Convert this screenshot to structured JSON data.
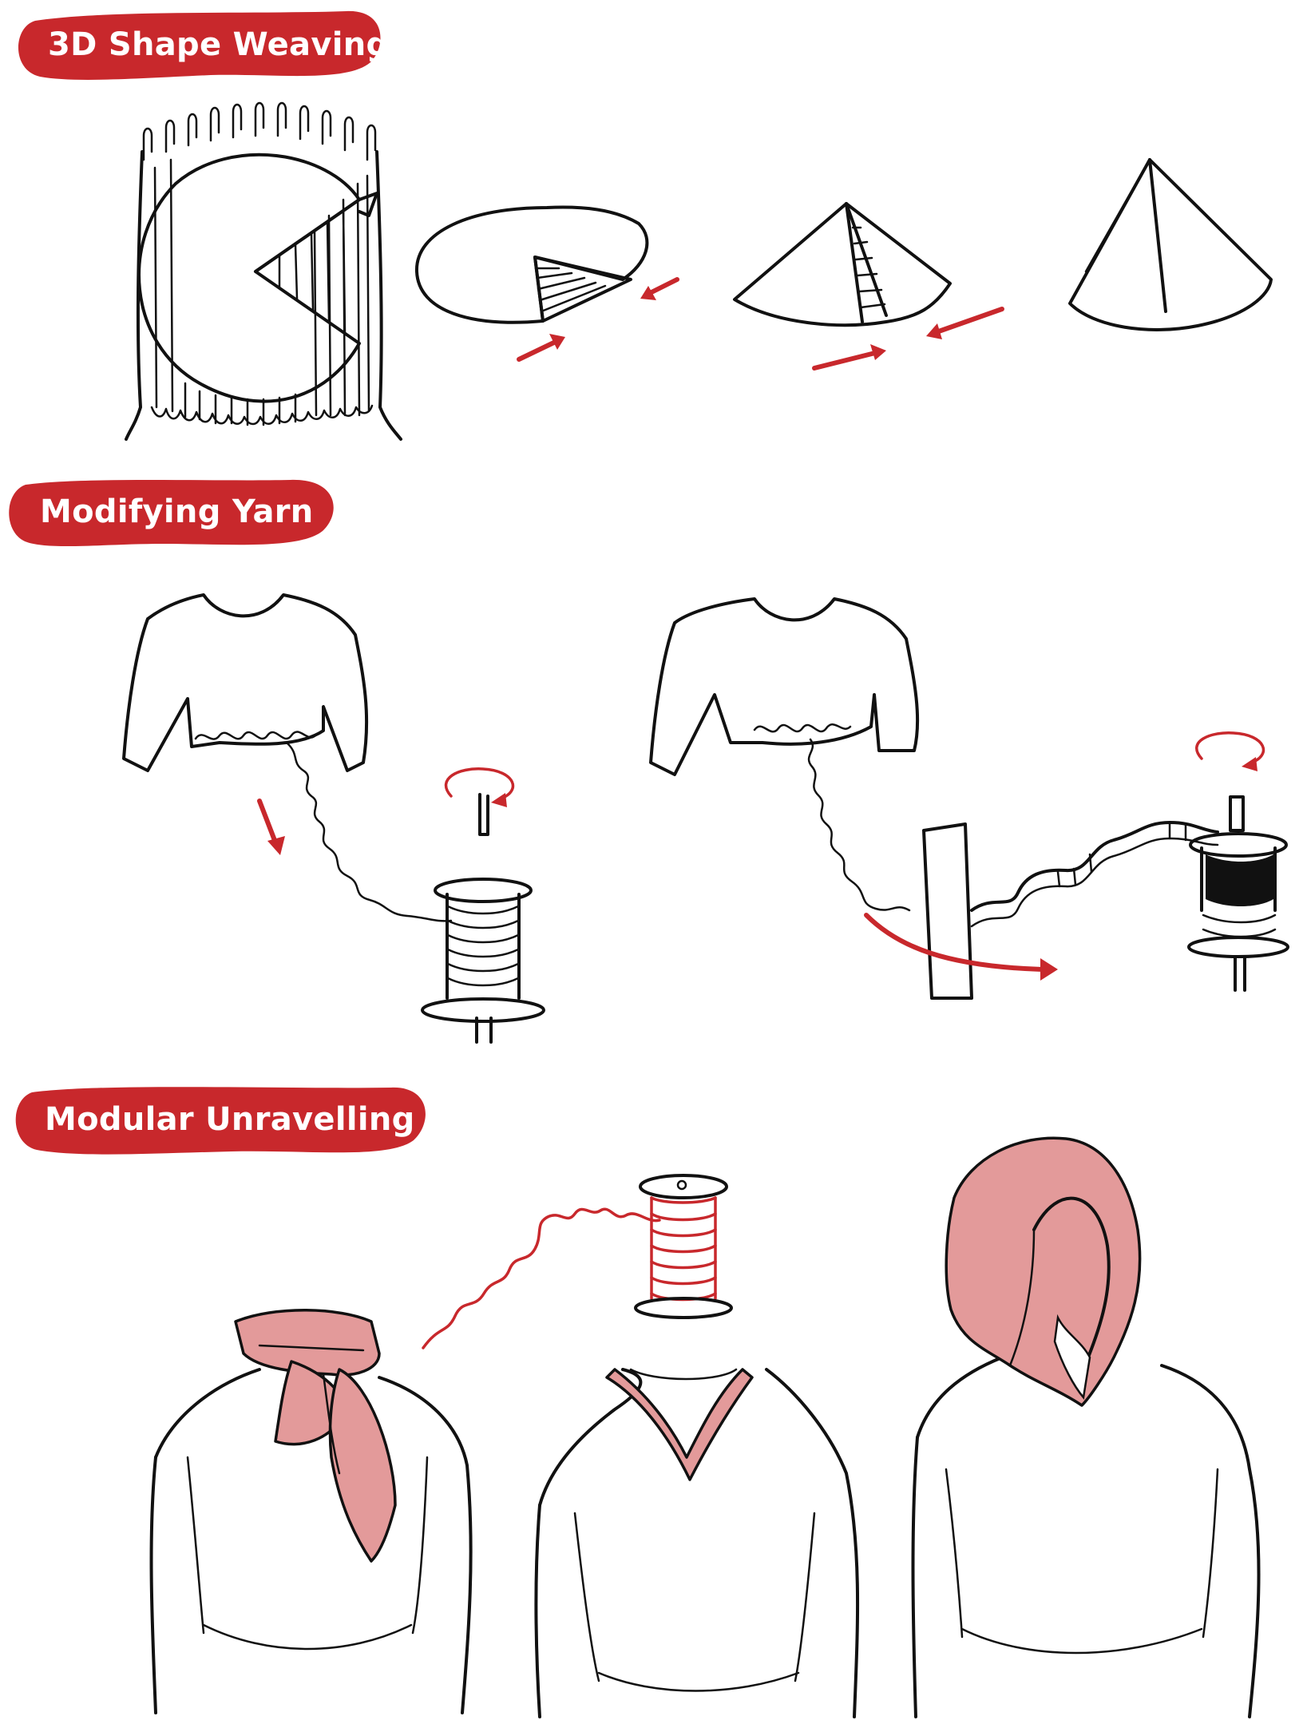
{
  "colors": {
    "accent": "#c8282c",
    "accent_light": "#e39a9a",
    "ink": "#111111",
    "background": "#ffffff"
  },
  "sections": [
    {
      "id": "3d-shape-weaving",
      "title": "3D Shape Weaving"
    },
    {
      "id": "modifying-yarn",
      "title": "Modifying Yarn"
    },
    {
      "id": "modular-unravelling",
      "title": "Modular Unravelling"
    }
  ]
}
